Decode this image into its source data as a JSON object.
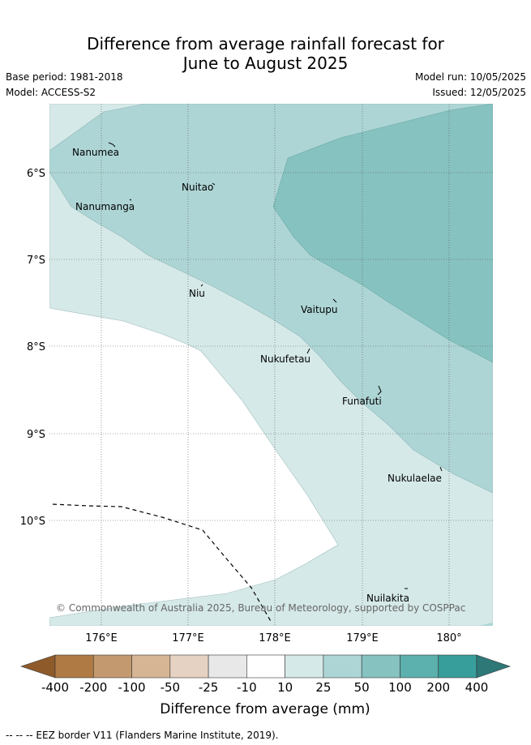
{
  "header": {
    "title_line1": "Difference from average rainfall forecast for",
    "title_line2": "June to August 2025",
    "base_period": "Base period: 1981-2018",
    "model": "Model: ACCESS-S2",
    "model_run": "Model run: 10/05/2025",
    "issued": "Issued: 12/05/2025"
  },
  "map": {
    "lat_labels": [
      "6°S",
      "7°S",
      "8°S",
      "9°S",
      "10°S"
    ],
    "lon_labels": [
      "176°E",
      "177°E",
      "178°E",
      "179°E",
      "180°"
    ],
    "islands": [
      "Nanumea",
      "Nuitao",
      "Nanumanga",
      "Niu",
      "Vaitupu",
      "Nukufetau",
      "Funafuti",
      "Nukulaelae",
      "Nuilakita"
    ],
    "copyright": "© Commonwealth of Australia 2025, Bureau of Meteorology, supported by COSPPac",
    "colors": {
      "land_fill_10_25": "#d5e9e8",
      "fill_25_50": "#aed5d5",
      "fill_50_100": "#86c2c0",
      "grid": "#555555",
      "eez_line": "#000000"
    }
  },
  "colorbar": {
    "ticks": [
      "-400",
      "-200",
      "-100",
      "-50",
      "-25",
      "-10",
      "10",
      "25",
      "50",
      "100",
      "200",
      "400"
    ],
    "colors": [
      "#8f5a2a",
      "#b07a45",
      "#c39a6f",
      "#d6b595",
      "#e6d2c2",
      "#e8e8e8",
      "#ffffff",
      "#d5e9e8",
      "#aed5d5",
      "#86c2c0",
      "#5cb0ad",
      "#389e9b",
      "#2e7878"
    ],
    "title": "Difference from average (mm)"
  },
  "footer": {
    "eez_note": "--  --  -- EEZ border V11 (Flanders Marine Institute, 2019)."
  }
}
